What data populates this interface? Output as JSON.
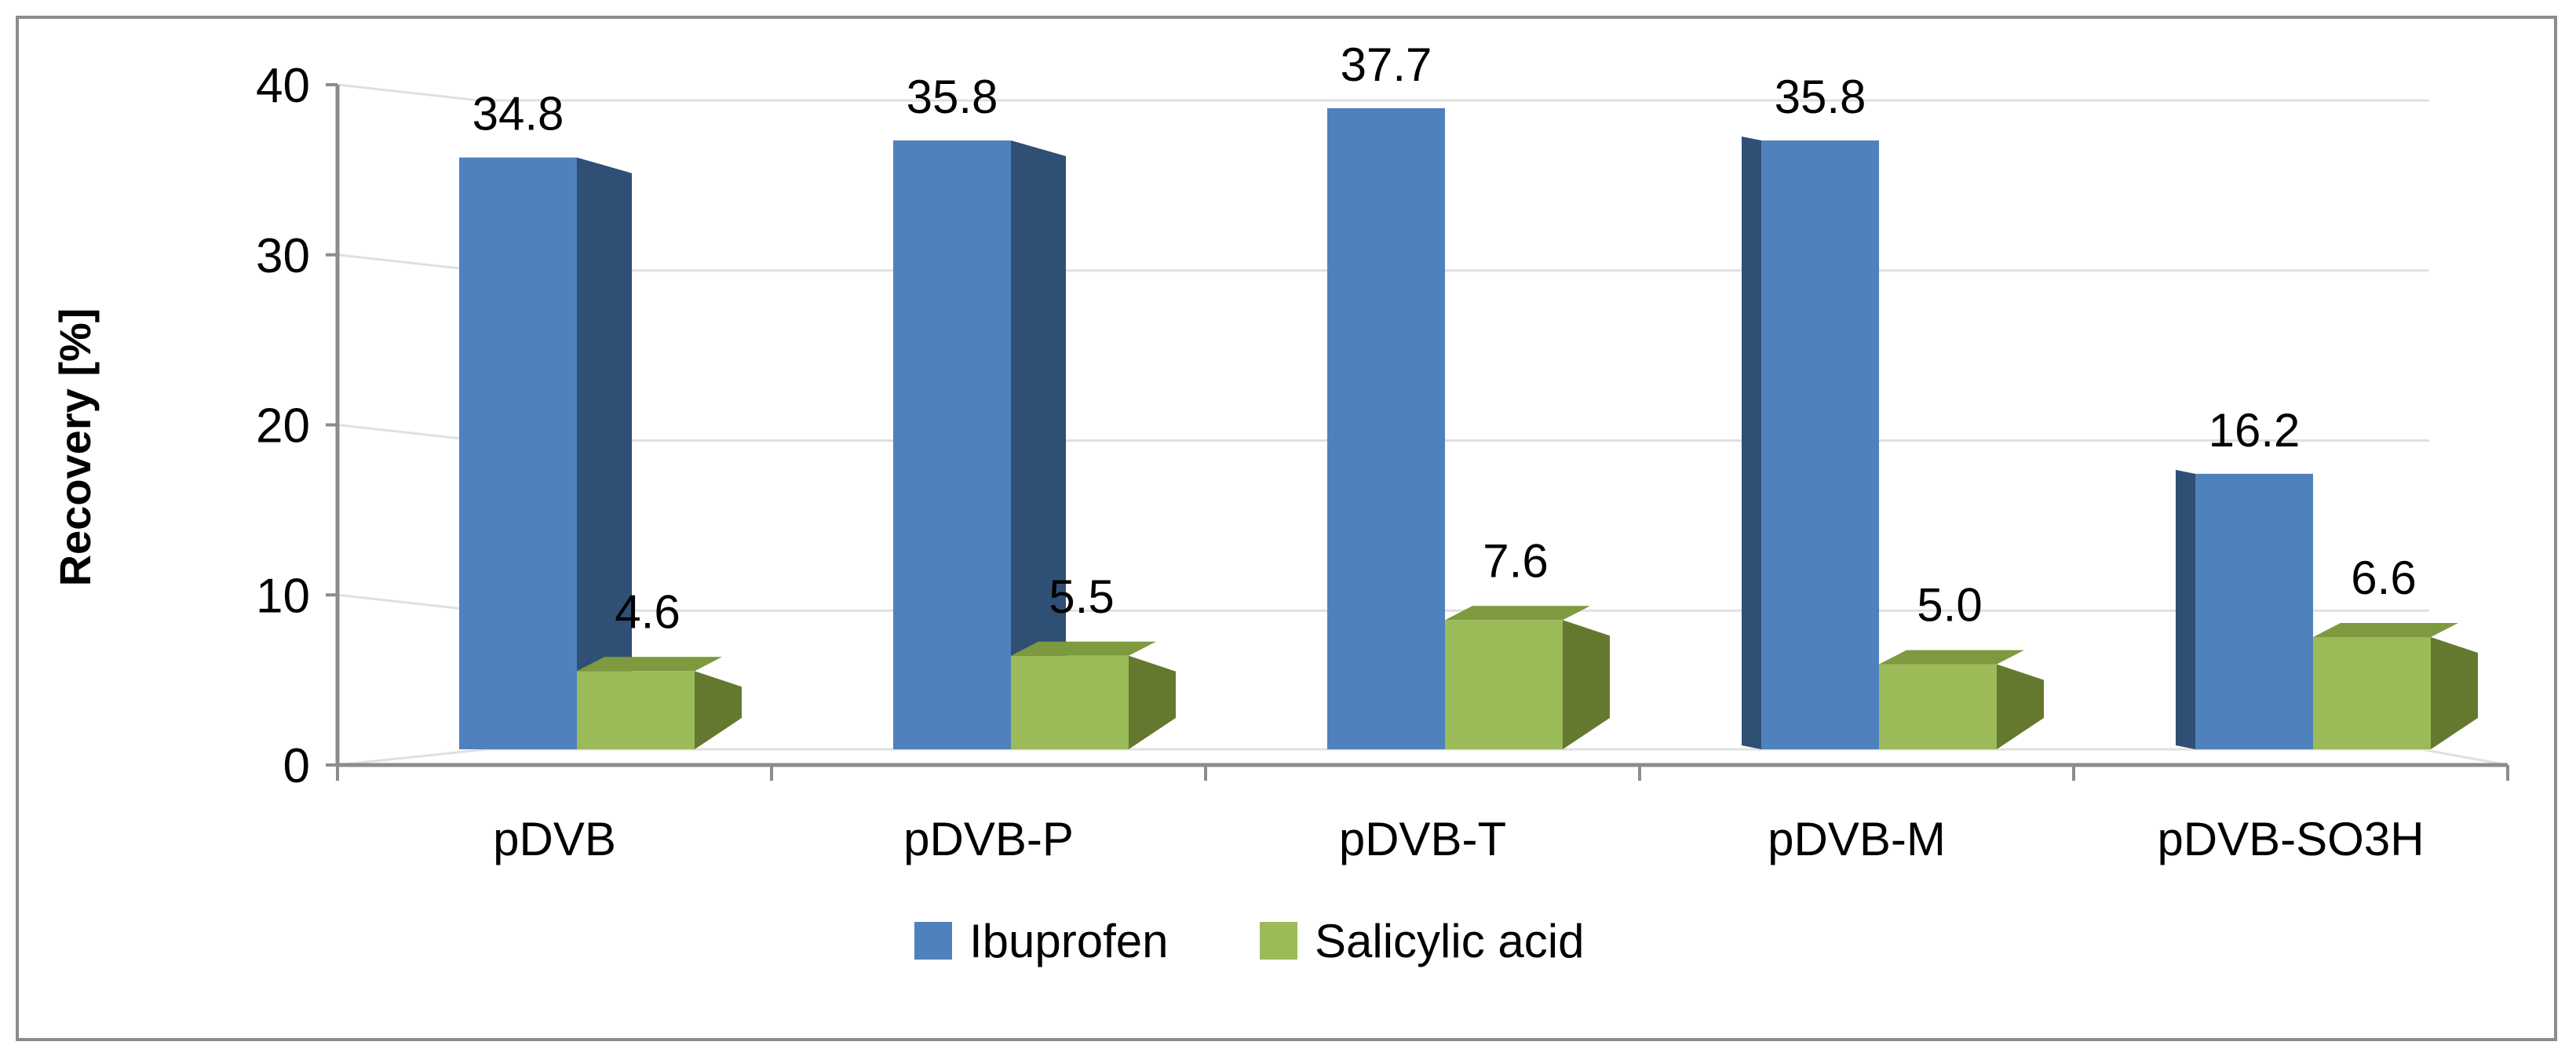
{
  "colors": {
    "ibuprofen_front": "#4f81bd",
    "ibuprofen_side": "#2f4f75",
    "ibuprofen_top": "#5b8fd0",
    "salicylic_front": "#9bbb59",
    "salicylic_side": "#64792f",
    "salicylic_top": "#7d9a3f",
    "axis": "#8c8c8c",
    "grid": "#e0e0e0"
  },
  "chart_data": {
    "type": "bar",
    "title": "",
    "xlabel": "",
    "ylabel": "Recovery [%]",
    "ylim": [
      0,
      40
    ],
    "yticks": [
      0,
      10,
      20,
      30,
      40
    ],
    "categories": [
      "pDVB",
      "pDVB-P",
      "pDVB-T",
      "pDVB-M",
      "pDVB-SO3H"
    ],
    "series": [
      {
        "name": "Ibuprofen",
        "values": [
          34.8,
          35.8,
          37.7,
          35.8,
          16.2
        ],
        "labels": [
          "34.8",
          "35.8",
          "37.7",
          "35.8",
          "16.2"
        ]
      },
      {
        "name": "Salicylic acid",
        "values": [
          4.6,
          5.5,
          7.6,
          5.0,
          6.6
        ],
        "labels": [
          "4.6",
          "5.5",
          "7.6",
          "5.0",
          "6.6"
        ]
      }
    ],
    "grid": true,
    "legend_position": "bottom"
  }
}
